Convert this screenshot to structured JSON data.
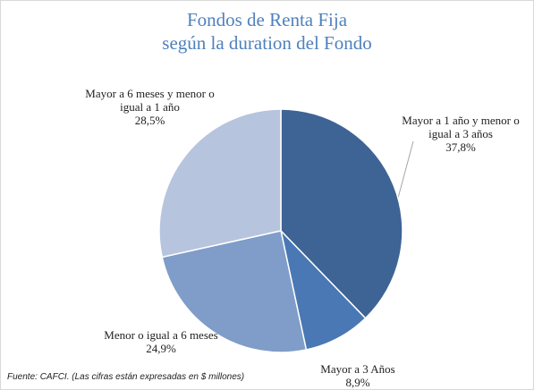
{
  "chart_data": {
    "type": "pie",
    "title": "Fondos de Renta Fija",
    "subtitle": "según la duration del Fondo",
    "categories": [
      "Mayor a 1 año y menor o igual a 3 años",
      "Mayor a 3 Años",
      "Menor o igual a 6 meses",
      "Mayor a 6 meses y menor o igual a 1 año"
    ],
    "values": [
      37.8,
      8.9,
      24.9,
      28.5
    ],
    "value_labels": [
      "37,8%",
      "8,9%",
      "24,9%",
      "28,5%"
    ],
    "colors": [
      "#3d6494",
      "#4a78b4",
      "#7f9dc8",
      "#b7c4de"
    ],
    "source": "Fuente: CAFCI. (Las cifras están expresadas en $ millones)"
  }
}
